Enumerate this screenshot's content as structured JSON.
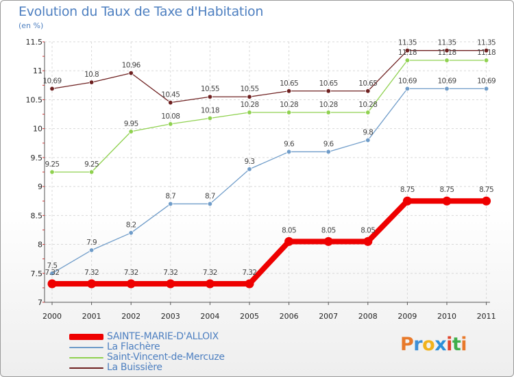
{
  "header": {
    "title": "Evolution du Taux de Taxe d'Habitation",
    "subtitle": "(en %)"
  },
  "logo": {
    "text": "Proxiti",
    "colors": [
      "#e8792a",
      "#3f8fd6",
      "#f0b21c",
      "#2c8fd8",
      "#e0462d",
      "#3fae49",
      "#e8792a"
    ]
  },
  "chart_data": {
    "type": "line",
    "x": [
      "2000",
      "2001",
      "2002",
      "2003",
      "2004",
      "2005",
      "2006",
      "2007",
      "2008",
      "2009",
      "2010",
      "2011"
    ],
    "ylim": [
      7,
      11.5
    ],
    "yticks": [
      "7",
      "7.5",
      "8",
      "8.5",
      "9",
      "9.5",
      "10",
      "10.5",
      "11",
      "11.5"
    ],
    "grid": true,
    "legend": "bottom-left",
    "series": [
      {
        "name": "La Buissière",
        "color": "#6e2020",
        "values": [
          10.69,
          10.8,
          10.96,
          10.45,
          10.55,
          10.55,
          10.65,
          10.65,
          10.65,
          11.35,
          11.35,
          11.35
        ],
        "labels": [
          "10.69",
          "10.8",
          "10.96",
          "10.45",
          "10.55",
          "10.55",
          "10.65",
          "10.65",
          "10.65",
          "11.35",
          "11.35",
          "11.35"
        ]
      },
      {
        "name": "Saint-Vincent-de-Mercuze",
        "color": "#8fd14f",
        "values": [
          9.25,
          9.25,
          9.95,
          10.08,
          10.18,
          10.28,
          10.28,
          10.28,
          10.28,
          11.18,
          11.18,
          11.18
        ],
        "labels": [
          "9.25",
          "9.25",
          "9.95",
          "10.08",
          "10.18",
          "10.28",
          "10.28",
          "10.28",
          "10.28",
          "11.18",
          "11.18",
          "11.18"
        ]
      },
      {
        "name": "La Flachère",
        "color": "#6f9cc9",
        "values": [
          7.5,
          7.9,
          8.2,
          8.7,
          8.7,
          9.3,
          9.6,
          9.6,
          9.8,
          10.69,
          10.69,
          10.69
        ],
        "labels": [
          "7.5",
          "7.9",
          "8.2",
          "8.7",
          "8.7",
          "9.3",
          "9.6",
          "9.6",
          "9.8",
          "10.69",
          "10.69",
          "10.69"
        ]
      },
      {
        "name": "SAINTE-MARIE-D'ALLOIX",
        "color": "#ee0000",
        "values": [
          7.32,
          7.32,
          7.32,
          7.32,
          7.32,
          7.32,
          8.05,
          8.05,
          8.05,
          8.75,
          8.75,
          8.75
        ],
        "labels": [
          "7.32",
          "7.32",
          "7.32",
          "7.32",
          "7.32",
          "7.32",
          "8.05",
          "8.05",
          "8.05",
          "8.75",
          "8.75",
          "8.75"
        ]
      }
    ],
    "legend_order": [
      3,
      2,
      1,
      0
    ]
  }
}
